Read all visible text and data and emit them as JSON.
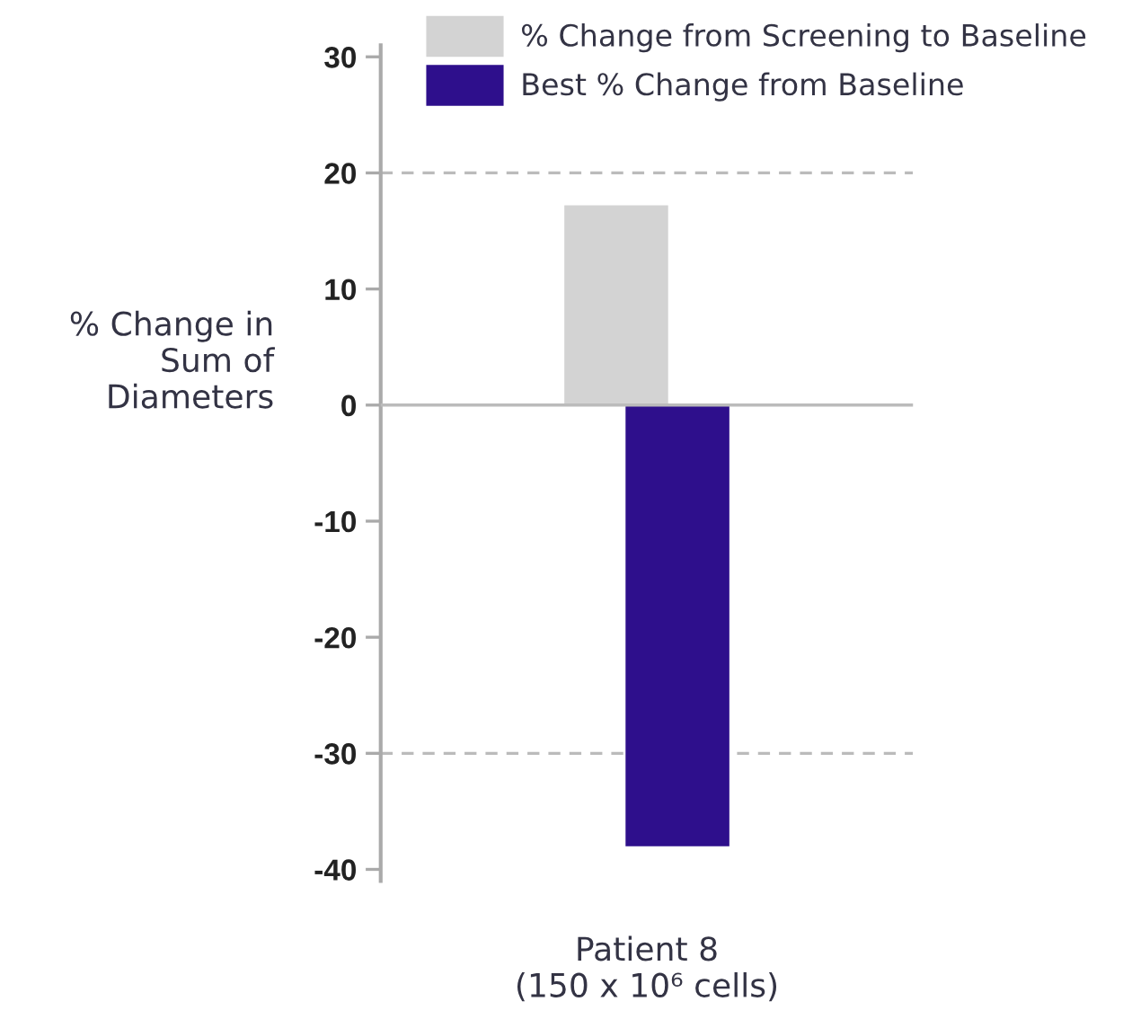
{
  "chart_data": {
    "type": "bar",
    "ylabel": "% Change in\nSum of\nDiameters",
    "categories": [
      "Patient 8\n(150 x 10⁶ cells)"
    ],
    "series": [
      {
        "name": "% Change from Screening to Baseline",
        "color": "#d3d3d3",
        "values": [
          17.2
        ]
      },
      {
        "name": "Best % Change from Baseline",
        "color": "#2e0f8c",
        "values": [
          -38.0
        ]
      }
    ],
    "ylim": [
      -41,
      31
    ],
    "yticks": [
      -40,
      -30,
      -20,
      -10,
      0,
      10,
      20,
      30
    ],
    "ref_lines": [
      {
        "axis": "y",
        "value": 0,
        "color": "#bbbbbb",
        "line_style": "solid"
      },
      {
        "axis": "y",
        "value": 20,
        "color": "#bbbbbb",
        "line_style": "dashed"
      },
      {
        "axis": "y",
        "value": -30,
        "color": "#bbbbbb",
        "line_style": "dashed"
      }
    ],
    "legend": "top",
    "grid": false
  }
}
